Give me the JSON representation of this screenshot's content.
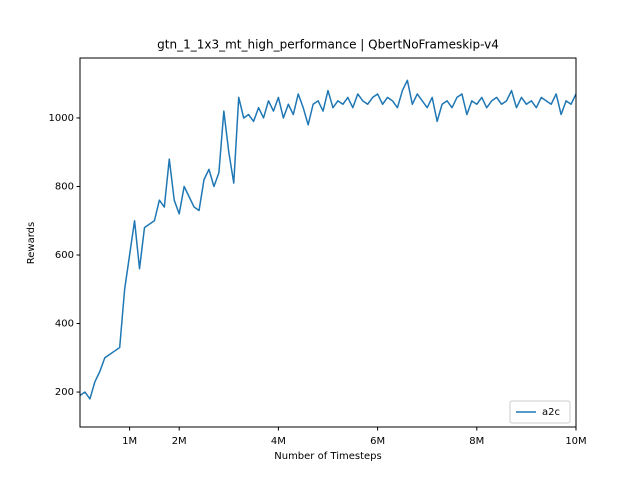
{
  "chart_data": {
    "type": "line",
    "title": "gtn_1_1x3_mt_high_performance | QbertNoFrameskip-v4",
    "x_label": "Number of Timesteps",
    "y_label": "Rewards",
    "x": [
      0,
      100000,
      200000,
      300000,
      400000,
      500000,
      600000,
      700000,
      800000,
      900000,
      1000000,
      1100000,
      1200000,
      1300000,
      1400000,
      1500000,
      1600000,
      1700000,
      1800000,
      1900000,
      2000000,
      2100000,
      2200000,
      2300000,
      2400000,
      2500000,
      2600000,
      2700000,
      2800000,
      2900000,
      3000000,
      3100000,
      3200000,
      3300000,
      3400000,
      3500000,
      3600000,
      3700000,
      3800000,
      3900000,
      4000000,
      4100000,
      4200000,
      4300000,
      4400000,
      4500000,
      4600000,
      4700000,
      4800000,
      4900000,
      5000000,
      5100000,
      5200000,
      5300000,
      5400000,
      5500000,
      5600000,
      5700000,
      5800000,
      5900000,
      6000000,
      6100000,
      6200000,
      6300000,
      6400000,
      6500000,
      6600000,
      6700000,
      6800000,
      6900000,
      7000000,
      7100000,
      7200000,
      7300000,
      7400000,
      7500000,
      7600000,
      7700000,
      7800000,
      7900000,
      8000000,
      8100000,
      8200000,
      8300000,
      8400000,
      8500000,
      8600000,
      8700000,
      8800000,
      8900000,
      9000000,
      9100000,
      9200000,
      9300000,
      9400000,
      9500000,
      9600000,
      9700000,
      9800000,
      9900000,
      10000000
    ],
    "series": [
      {
        "name": "a2c",
        "color": "#1f77b4",
        "values": [
          190,
          200,
          180,
          230,
          260,
          300,
          310,
          320,
          330,
          500,
          600,
          700,
          560,
          680,
          690,
          700,
          760,
          740,
          880,
          760,
          720,
          800,
          770,
          740,
          730,
          820,
          850,
          800,
          840,
          1020,
          900,
          810,
          1060,
          1000,
          1010,
          990,
          1030,
          1000,
          1050,
          1020,
          1060,
          1000,
          1040,
          1010,
          1070,
          1030,
          980,
          1040,
          1050,
          1020,
          1080,
          1030,
          1050,
          1040,
          1060,
          1030,
          1070,
          1050,
          1040,
          1060,
          1070,
          1040,
          1060,
          1050,
          1030,
          1080,
          1110,
          1040,
          1070,
          1050,
          1030,
          1060,
          990,
          1040,
          1050,
          1030,
          1060,
          1070,
          1010,
          1050,
          1040,
          1060,
          1030,
          1050,
          1060,
          1040,
          1050,
          1080,
          1030,
          1060,
          1040,
          1050,
          1030,
          1060,
          1050,
          1040,
          1070,
          1010,
          1050,
          1040,
          1070
        ]
      }
    ],
    "xlim": [
      0,
      10000000
    ],
    "ylim": [
      98,
      1175
    ],
    "xticks": [
      {
        "value": 1000000,
        "label": "1M"
      },
      {
        "value": 2000000,
        "label": "2M"
      },
      {
        "value": 4000000,
        "label": "4M"
      },
      {
        "value": 6000000,
        "label": "6M"
      },
      {
        "value": 8000000,
        "label": "8M"
      },
      {
        "value": 10000000,
        "label": "10M"
      }
    ],
    "yticks": [
      200,
      400,
      600,
      800,
      1000
    ],
    "grid": false,
    "legend": "lower right"
  }
}
